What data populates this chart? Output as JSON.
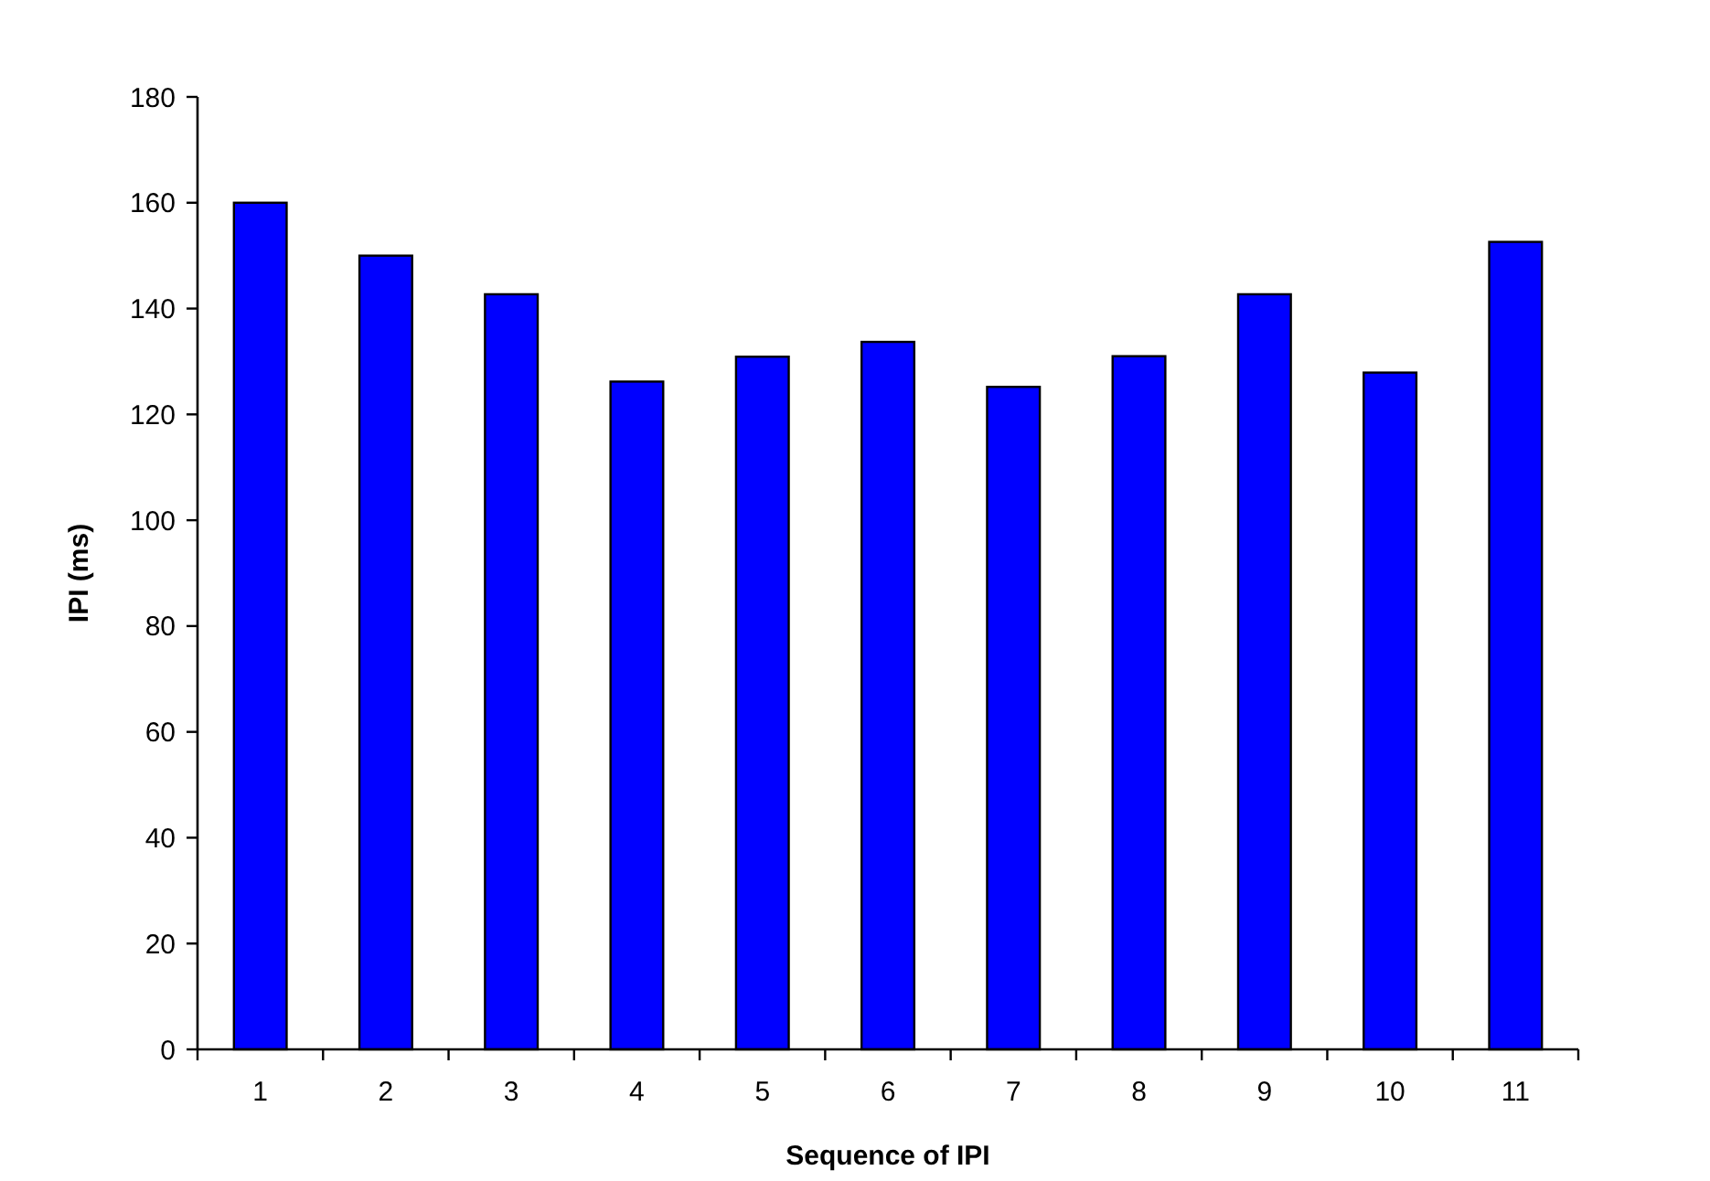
{
  "chart_data": {
    "type": "bar",
    "xlabel": "Sequence of IPI",
    "ylabel": "IPI (ms)",
    "categories": [
      "1",
      "2",
      "3",
      "4",
      "5",
      "6",
      "7",
      "8",
      "9",
      "10",
      "11"
    ],
    "values": [
      160,
      150,
      142.7,
      126.2,
      130.9,
      133.7,
      125.2,
      131,
      142.7,
      127.9,
      152.6
    ],
    "color": "#0000ff",
    "ylim": [
      0,
      180
    ],
    "yticks": [
      0,
      20,
      40,
      60,
      80,
      100,
      120,
      140,
      160,
      180
    ],
    "grid": false
  }
}
